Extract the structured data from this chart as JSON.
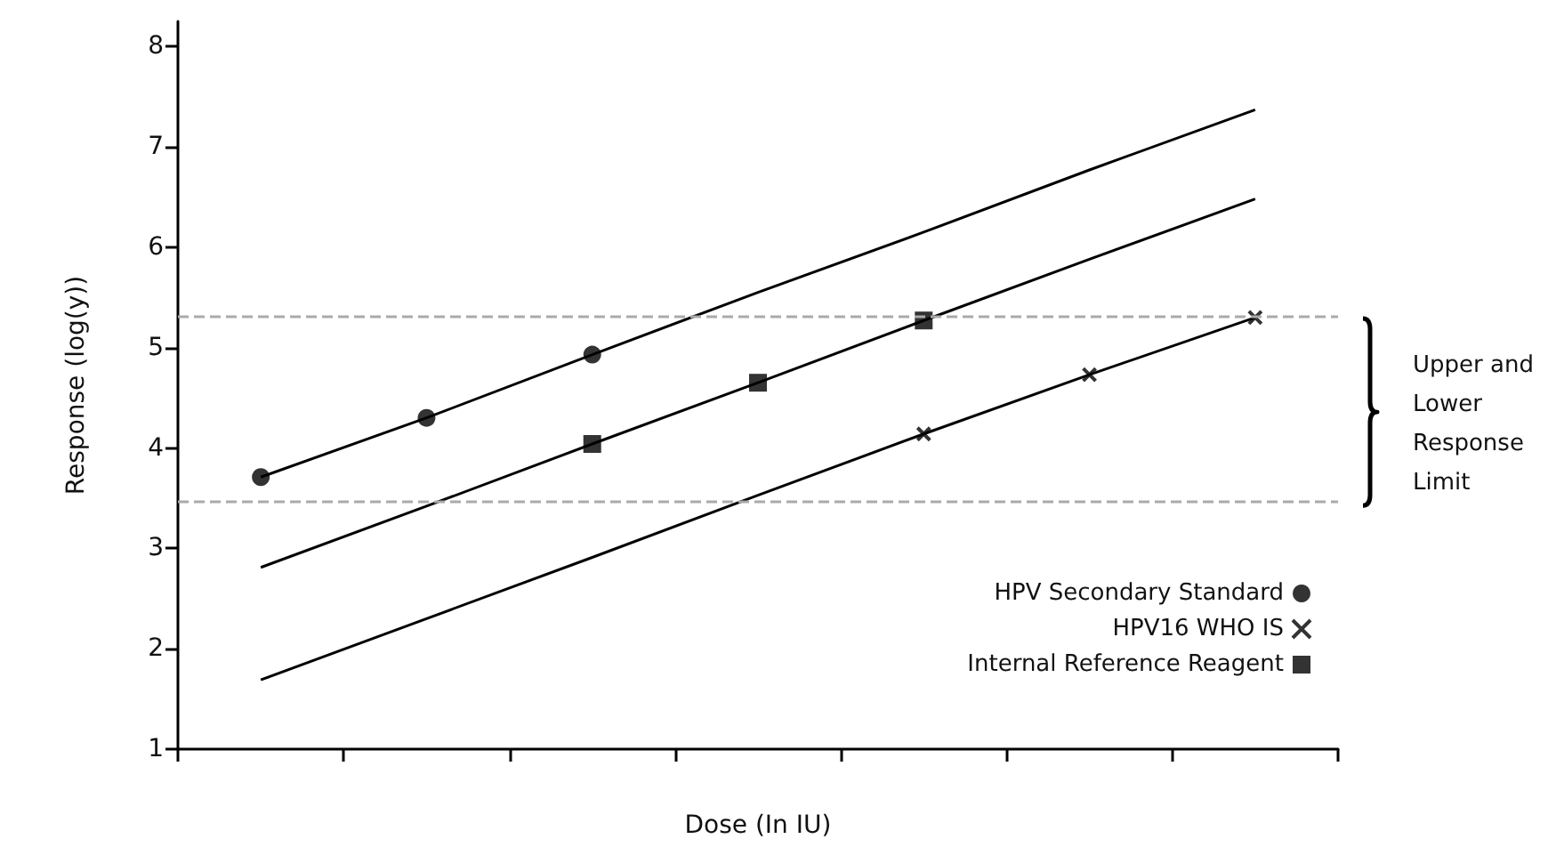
{
  "chart_data": {
    "type": "line",
    "xlabel": "Dose (In IU)",
    "ylabel": "Response (log(y))",
    "categories": [
      null,
      null,
      null,
      null,
      null,
      null,
      null
    ],
    "series": [
      {
        "color": "#000000",
        "marker": "none",
        "values": [
          3.71,
          4.3,
          4.93,
          5.55,
          6.15,
          6.77,
          7.37
        ]
      },
      {
        "color": "#000000",
        "marker": "none",
        "values": [
          2.81,
          3.42,
          4.04,
          4.65,
          5.27,
          5.88,
          6.48
        ]
      },
      {
        "color": "#000000",
        "marker": "none",
        "values": [
          1.69,
          2.3,
          2.91,
          3.53,
          4.14,
          4.73,
          5.3
        ]
      },
      {
        "type": "scatter",
        "name": "HPV Secondary Standard",
        "color": "#000000",
        "marker": "circle",
        "values": [
          3.71,
          4.3,
          4.93,
          null,
          null,
          null,
          null
        ]
      },
      {
        "type": "scatter",
        "name": "HPV16 WHO IS",
        "color": "#000000",
        "marker": "cross",
        "values": [
          null,
          null,
          null,
          null,
          4.14,
          4.73,
          5.3
        ]
      },
      {
        "type": "scatter",
        "name": "Internal Reference Reagent",
        "color": "#000000",
        "marker": "square",
        "values": [
          null,
          null,
          4.04,
          4.65,
          5.27,
          null,
          null
        ]
      }
    ],
    "ylim": [
      1,
      8.25
    ],
    "yticks": [
      1,
      2,
      3,
      4,
      5,
      6,
      7,
      8
    ],
    "tick_labels": "y",
    "grid": false,
    "legend": "right",
    "ref_lines": [
      {
        "axis": "y",
        "value": 5.32,
        "color": "#aaaaaa",
        "line_style": "dashed"
      },
      {
        "axis": "y",
        "value": 3.47,
        "color": "#aaaaaa",
        "line_style": "dashed"
      }
    ],
    "annotations": [
      "Upper and\nLower\nResponse\nLimit"
    ]
  }
}
